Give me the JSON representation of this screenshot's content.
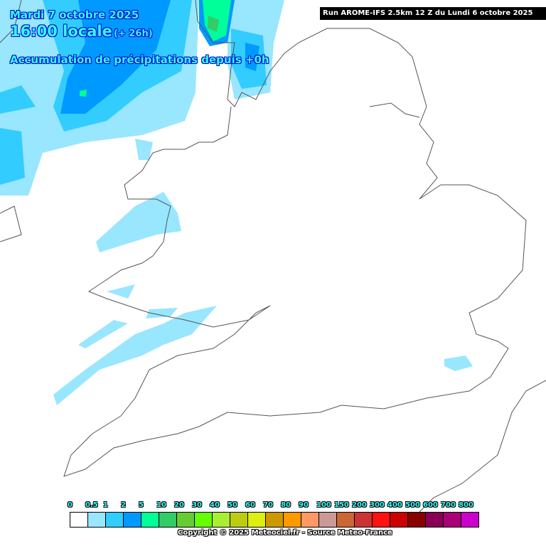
{
  "header": {
    "date": "Mardi 7 octobre 2025",
    "time": "16:00 locale",
    "lead": "(+ 26h)",
    "field": "Accumulation de précipitations depuis +0h"
  },
  "run_info": "Run AROME-IFS 2.5km 12 Z du Lundi 6 octobre 2025",
  "legend": {
    "labels": [
      "0",
      "0.5",
      "1",
      "2",
      "5",
      "10",
      "20",
      "30",
      "40",
      "50",
      "60",
      "70",
      "80",
      "90",
      "100",
      "150",
      "200",
      "300",
      "400",
      "500",
      "600",
      "700",
      "800"
    ],
    "colors": [
      "#ffffff",
      "#99e6ff",
      "#33ccff",
      "#0099ff",
      "#00ff99",
      "#33cc66",
      "#66cc33",
      "#66ff00",
      "#aaee33",
      "#bbcc11",
      "#ddee11",
      "#cc9900",
      "#ff9900",
      "#ff9966",
      "#cc9999",
      "#cc6633",
      "#cc3333",
      "#ff1111",
      "#cc0000",
      "#880000",
      "#880055",
      "#aa0077",
      "#cc00cc"
    ]
  },
  "copyright": "Copyright © 2025 Meteociel.fr - Source Meteo-France"
}
